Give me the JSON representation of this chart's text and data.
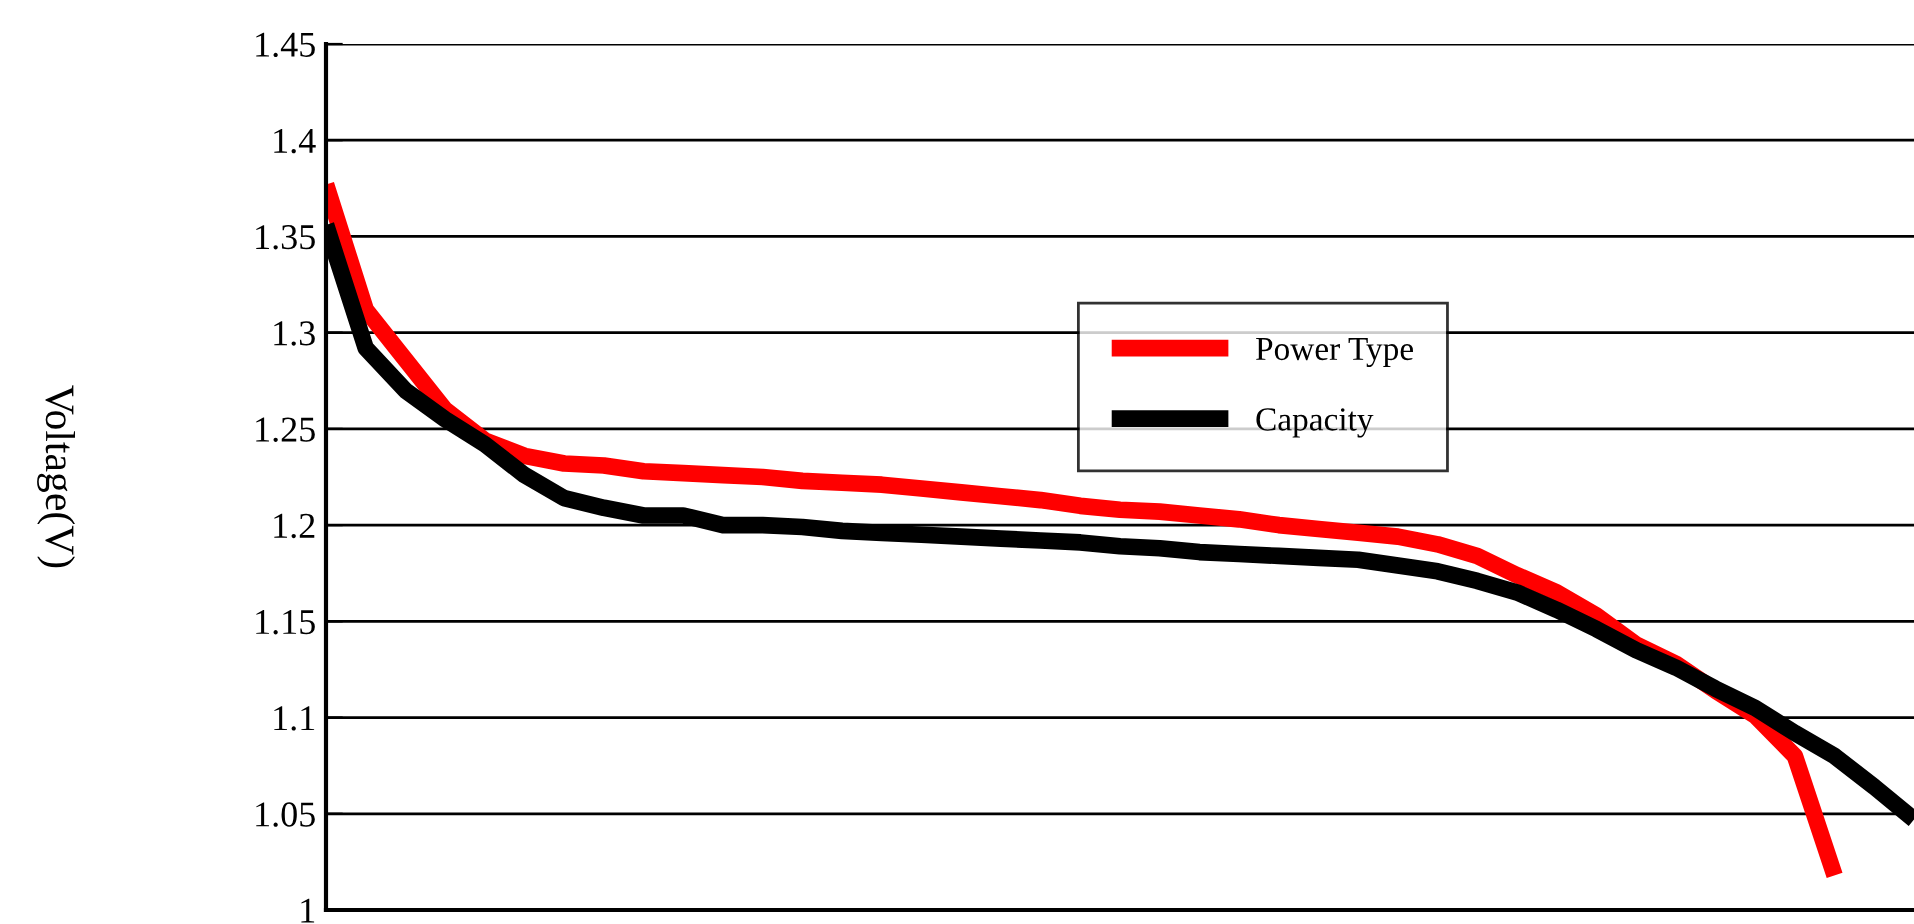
{
  "chart_data": {
    "type": "line",
    "ylabel": "Voltage(V)",
    "categories": [
      null,
      null,
      null,
      null,
      null,
      null,
      null,
      null,
      null,
      null,
      null,
      null,
      null,
      null,
      null,
      null,
      null,
      null,
      null,
      null,
      null,
      null,
      null,
      null,
      null,
      null,
      null,
      null,
      null,
      null,
      null,
      null,
      null,
      null,
      null,
      null,
      null,
      null,
      null,
      null,
      null
    ],
    "series": [
      {
        "name": "Power Type",
        "color": "#ff0000",
        "values": [
          1.377,
          1.312,
          1.286,
          1.26,
          1.244,
          1.236,
          1.232,
          1.231,
          1.228,
          1.227,
          1.226,
          1.225,
          1.223,
          1.222,
          1.221,
          1.219,
          1.217,
          1.215,
          1.213,
          1.21,
          1.208,
          1.207,
          1.205,
          1.203,
          1.2,
          1.198,
          1.196,
          1.194,
          1.19,
          1.184,
          1.174,
          1.165,
          1.153,
          1.138,
          1.128,
          1.114,
          1.101,
          1.08,
          1.018,
          null,
          null
        ]
      },
      {
        "name": "Capacity",
        "color": "#000000",
        "values": [
          1.356,
          1.292,
          1.27,
          1.255,
          1.242,
          1.226,
          1.214,
          1.209,
          1.205,
          1.205,
          1.2,
          1.2,
          1.199,
          1.197,
          1.196,
          1.195,
          1.194,
          1.193,
          1.192,
          1.191,
          1.189,
          1.188,
          1.186,
          1.185,
          1.184,
          1.183,
          1.182,
          1.179,
          1.176,
          1.171,
          1.165,
          1.156,
          1.146,
          1.135,
          1.126,
          1.115,
          1.105,
          1.092,
          1.08,
          1.064,
          1.047
        ]
      }
    ],
    "ylim": [
      1,
      1.45
    ],
    "yticks": [
      {
        "value": 1,
        "label": "1"
      },
      {
        "value": 1.05,
        "label": "1.05"
      },
      {
        "value": 1.1,
        "label": "1.1"
      },
      {
        "value": 1.15,
        "label": "1.15"
      },
      {
        "value": 1.2,
        "label": "1.2"
      },
      {
        "value": 1.25,
        "label": "1.25"
      },
      {
        "value": 1.3,
        "label": "1.3"
      },
      {
        "value": 1.35,
        "label": "1.35"
      },
      {
        "value": 1.4,
        "label": "1.4"
      },
      {
        "value": 1.45,
        "label": "1.45"
      }
    ],
    "grid": "y",
    "legend": "top",
    "tick_labels": "y",
    "marker": "none",
    "line_style": "solid"
  }
}
